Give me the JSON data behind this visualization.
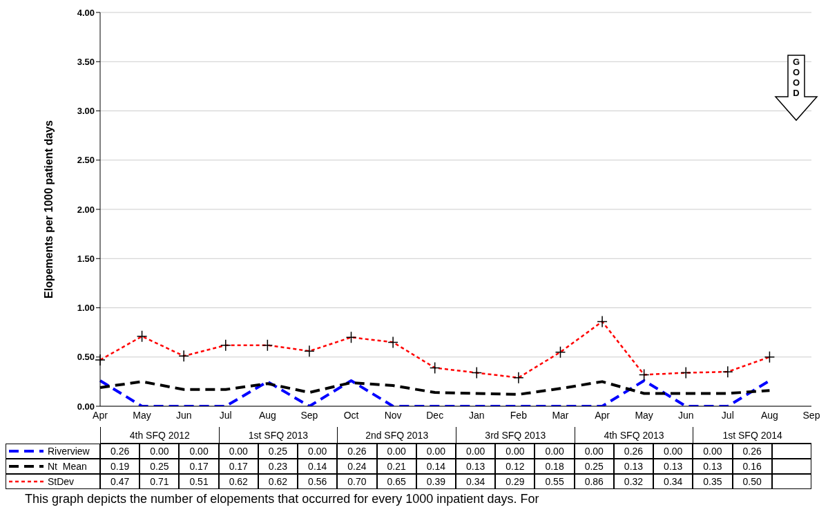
{
  "chart_data": {
    "type": "line",
    "ylabel": "Elopements per 1000 patient days",
    "categories": [
      "Apr",
      "May",
      "Jun",
      "Jul",
      "Aug",
      "Sep",
      "Oct",
      "Nov",
      "Dec",
      "Jan",
      "Feb",
      "Mar",
      "Apr",
      "May",
      "Jun",
      "Jul",
      "Aug",
      "Sep"
    ],
    "series": [
      {
        "name": "Riverview",
        "color": "#0000ff",
        "line_style": "dashed",
        "marker": "none",
        "values": [
          0.26,
          0.0,
          0.0,
          0.0,
          0.25,
          0.0,
          0.26,
          0.0,
          0.0,
          0.0,
          0.0,
          0.0,
          0.0,
          0.26,
          0.0,
          0.0,
          0.26,
          null
        ],
        "value_labels": [
          "0.26",
          "0.00",
          "0.00",
          "0.00",
          "0.25",
          "0.00",
          "0.26",
          "0.00",
          "0.00",
          "0.00",
          "0.00",
          "0.00",
          "0.00",
          "0.26",
          "0.00",
          "0.00",
          "0.26",
          null
        ]
      },
      {
        "name": "Nt  Mean",
        "color": "#000000",
        "line_style": "dashed",
        "marker": "none",
        "values": [
          0.19,
          0.25,
          0.17,
          0.17,
          0.23,
          0.14,
          0.24,
          0.21,
          0.14,
          0.13,
          0.12,
          0.18,
          0.25,
          0.13,
          0.13,
          0.13,
          0.16,
          null
        ],
        "value_labels": [
          "0.19",
          "0.25",
          "0.17",
          "0.17",
          "0.23",
          "0.14",
          "0.24",
          "0.21",
          "0.14",
          "0.13",
          "0.12",
          "0.18",
          "0.25",
          "0.13",
          "0.13",
          "0.13",
          "0.16",
          null
        ]
      },
      {
        "name": "StDev",
        "color": "#ff0000",
        "line_style": "dotted",
        "marker": "cross",
        "values": [
          0.47,
          0.71,
          0.51,
          0.62,
          0.62,
          0.56,
          0.7,
          0.65,
          0.39,
          0.34,
          0.29,
          0.55,
          0.86,
          0.32,
          0.34,
          0.35,
          0.5,
          null
        ],
        "value_labels": [
          "0.47",
          "0.71",
          "0.51",
          "0.62",
          "0.62",
          "0.56",
          "0.70",
          "0.65",
          "0.39",
          "0.34",
          "0.29",
          "0.55",
          "0.86",
          "0.32",
          "0.34",
          "0.35",
          "0.50",
          null
        ]
      }
    ],
    "ylim": [
      0,
      4
    ],
    "yticks": [
      {
        "value": 0,
        "label": "0.00"
      },
      {
        "value": 0.5,
        "label": "0.50"
      },
      {
        "value": 1,
        "label": "1.00"
      },
      {
        "value": 1.5,
        "label": "1.50"
      },
      {
        "value": 2,
        "label": "2.00"
      },
      {
        "value": 2.5,
        "label": "2.50"
      },
      {
        "value": 3,
        "label": "3.00"
      },
      {
        "value": 3.5,
        "label": "3.50"
      },
      {
        "value": 4,
        "label": "4.00"
      }
    ],
    "grid": "y",
    "legend": "bottom",
    "annotations": [
      "4th SFQ 2012",
      "1st SFQ 2013",
      "2nd SFQ 2013",
      "3rd SFQ 2013",
      "4th SFQ 2013",
      "1st SFQ 2014",
      "This graph depicts the number of elopements that occurred for every 1000 inpatient days. For",
      "GOOD"
    ]
  }
}
